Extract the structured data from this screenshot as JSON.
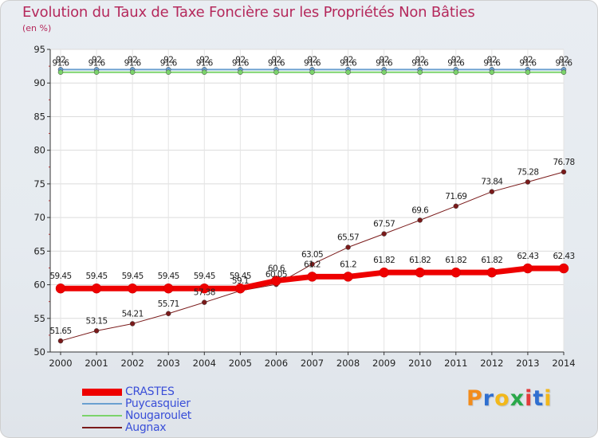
{
  "title": "Evolution du Taux de Taxe Foncière sur les Propriétés Non Bâties",
  "unit": "(en %)",
  "logo": {
    "text": "Proxiti",
    "letters": [
      "P",
      "r",
      "o",
      "x",
      "i",
      "t",
      "i"
    ],
    "colors": [
      "#f28c1c",
      "#2f6fd0",
      "#f2b81c",
      "#2aa84a",
      "#e23b3b",
      "#2f6fd0",
      "#f2b81c"
    ]
  },
  "colors": {
    "title": "#b5295c",
    "legend_text": "#3a4fd8"
  },
  "chart_data": {
    "type": "line",
    "categories": [
      "2000",
      "2001",
      "2002",
      "2003",
      "2004",
      "2005",
      "2006",
      "2007",
      "2008",
      "2009",
      "2010",
      "2011",
      "2012",
      "2013",
      "2014"
    ],
    "ylim": [
      50,
      95
    ],
    "yticks": [
      50,
      55,
      60,
      65,
      70,
      75,
      80,
      85,
      90,
      95
    ],
    "grid": true,
    "legend_position": "bottom-left",
    "series": [
      {
        "name": "CRASTES",
        "color": "#ee0000",
        "width": 7,
        "marker": 6,
        "values": [
          59.45,
          59.45,
          59.45,
          59.45,
          59.45,
          59.45,
          60.6,
          61.2,
          61.2,
          61.82,
          61.82,
          61.82,
          61.82,
          62.43,
          62.43
        ],
        "labels": [
          "59.45",
          "59.45",
          "59.45",
          "59.45",
          "59.45",
          "59.45",
          "60.6",
          "61.2",
          "61.2",
          "61.82",
          "61.82",
          "61.82",
          "61.82",
          "62.43",
          "62.43"
        ]
      },
      {
        "name": "Puycasquier",
        "color": "#6aa0d0",
        "width": 2,
        "marker": 3,
        "values": [
          92,
          92,
          92,
          92,
          92,
          92,
          92,
          92,
          92,
          92,
          92,
          92,
          92,
          92,
          92
        ],
        "labels": [
          "92",
          "92",
          "92",
          "92",
          "92",
          "92",
          "92",
          "92",
          "92",
          "92",
          "92",
          "92",
          "92",
          "92",
          "92"
        ]
      },
      {
        "name": "Nougaroulet",
        "color": "#7bd36b",
        "width": 2,
        "marker": 3,
        "values": [
          91.6,
          91.6,
          91.6,
          91.6,
          91.6,
          91.6,
          91.6,
          91.6,
          91.6,
          91.6,
          91.6,
          91.6,
          91.6,
          91.6,
          91.6
        ],
        "labels": [
          "91.6",
          "91.6",
          "91.6",
          "91.6",
          "91.6",
          "91.6",
          "91.6",
          "91.6",
          "91.6",
          "91.6",
          "91.6",
          "91.6",
          "91.6",
          "91.6",
          "91.6"
        ]
      },
      {
        "name": "Augnax",
        "color": "#7a1a1a",
        "width": 1,
        "marker": 3,
        "values": [
          51.65,
          53.15,
          54.21,
          55.71,
          57.38,
          59.1,
          60.05,
          63.05,
          65.57,
          67.57,
          69.6,
          71.69,
          73.84,
          75.28,
          76.78
        ],
        "labels": [
          "51.65",
          "53.15",
          "54.21",
          "55.71",
          "57.38",
          "59.1",
          "60.05",
          "63.05",
          "65.57",
          "67.57",
          "69.6",
          "71.69",
          "73.84",
          "75.28",
          "76.78"
        ]
      }
    ]
  }
}
